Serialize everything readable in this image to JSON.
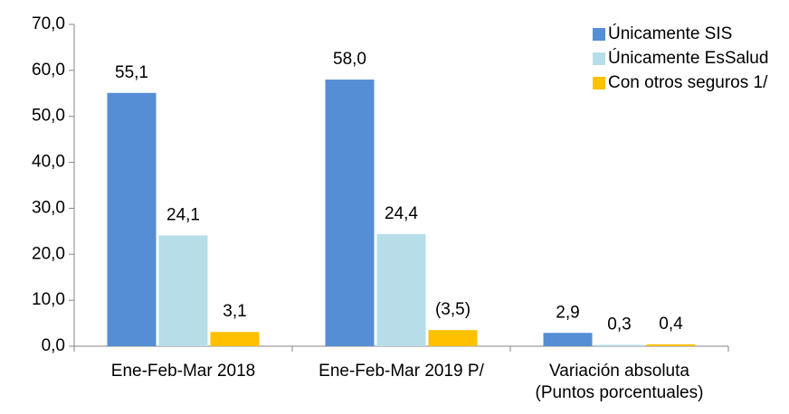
{
  "chart_data": {
    "type": "bar",
    "categories": [
      "Ene-Feb-Mar 2018",
      "Ene-Feb-Mar 2019 P/",
      "Variación absoluta\n(Puntos porcentuales)"
    ],
    "series": [
      {
        "name": "Únicamente SIS",
        "color": "#558ed5",
        "values": [
          55.1,
          58.0,
          2.9
        ],
        "value_labels": [
          "55,1",
          "58,0",
          "2,9"
        ]
      },
      {
        "name": "Únicamente EsSalud",
        "color": "#b7dee8",
        "values": [
          24.1,
          24.4,
          0.3
        ],
        "value_labels": [
          "24,1",
          "24,4",
          "0,3"
        ]
      },
      {
        "name": "Con otros seguros 1/",
        "color": "#ffc000",
        "values": [
          3.1,
          3.5,
          0.4
        ],
        "value_labels": [
          "3,1",
          "(3,5)",
          "0,4"
        ]
      }
    ],
    "ylim": [
      0,
      70
    ],
    "yticks": [
      {
        "value": 0,
        "label": "0,0"
      },
      {
        "value": 10,
        "label": "10,0"
      },
      {
        "value": 20,
        "label": "20,0"
      },
      {
        "value": 30,
        "label": "30,0"
      },
      {
        "value": 40,
        "label": "40,0"
      },
      {
        "value": 50,
        "label": "50,0"
      },
      {
        "value": 60,
        "label": "60,0"
      },
      {
        "value": 70,
        "label": "70,0"
      }
    ],
    "grid": false,
    "legend": "top-right"
  }
}
